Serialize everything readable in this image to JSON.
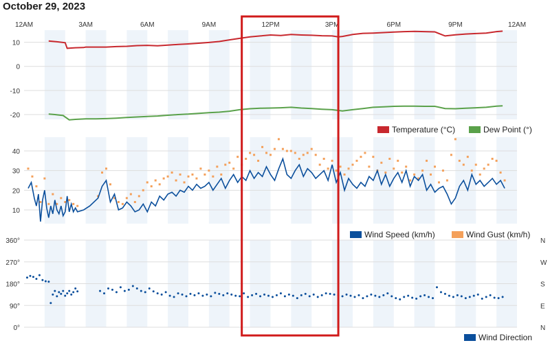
{
  "page": {
    "title": "October 29, 2023"
  },
  "x_axis": {
    "tick_labels": [
      "12AM",
      "3AM",
      "6AM",
      "9AM",
      "12PM",
      "3PM",
      "6PM",
      "9PM",
      "12AM"
    ],
    "tick_hours": [
      0,
      3,
      6,
      9,
      12,
      15,
      18,
      21,
      24
    ],
    "range_hours": [
      0,
      24
    ]
  },
  "colors": {
    "temperature": "#c8282e",
    "dew_point": "#5aa14a",
    "wind_speed": "#0b4f9c",
    "wind_gust": "#f4a05a",
    "wind_direction": "#0b4f9c",
    "highlight": "#d01a1a",
    "band": "#eef4fa",
    "grid": "#dddddd"
  },
  "highlight": {
    "start_hour": 10.6,
    "end_hour": 15.3
  },
  "chart_data": [
    {
      "type": "line",
      "name": "temperature-dewpoint",
      "ylim": [
        -22,
        15
      ],
      "y_ticks": [
        10,
        0,
        -10,
        -20
      ],
      "y_tick_labels": [
        "10",
        "0",
        "-10",
        "-20"
      ],
      "legend": [
        "Temperature (°C)",
        "Dew Point (°)"
      ],
      "series": [
        {
          "name": "Temperature (°C)",
          "x": [
            1.2,
            1.6,
            2.0,
            2.1,
            2.5,
            2.9,
            3.0,
            3.5,
            4.0,
            4.5,
            5.0,
            5.5,
            6.0,
            6.5,
            7.0,
            7.5,
            8.0,
            8.5,
            9.0,
            9.5,
            10.0,
            10.5,
            11.0,
            11.5,
            12.0,
            12.5,
            13.0,
            13.5,
            14.0,
            14.5,
            15.0,
            15.3,
            15.5,
            16.0,
            16.5,
            17.0,
            17.5,
            18.0,
            18.5,
            19.0,
            19.5,
            20.0,
            20.5,
            21.0,
            21.5,
            22.0,
            22.5,
            23.0,
            23.3
          ],
          "y": [
            10.5,
            10.2,
            9.8,
            7.5,
            7.7,
            7.8,
            8.0,
            8.0,
            8.0,
            8.2,
            8.3,
            8.6,
            8.7,
            8.5,
            8.8,
            9.1,
            9.3,
            9.6,
            9.9,
            10.3,
            11.0,
            11.6,
            12.2,
            12.6,
            13.0,
            12.8,
            13.2,
            13.0,
            12.9,
            12.7,
            12.6,
            12.2,
            12.4,
            13.2,
            13.7,
            13.8,
            14.0,
            14.2,
            14.4,
            14.5,
            14.4,
            14.3,
            12.6,
            13.1,
            13.4,
            13.6,
            13.8,
            14.4,
            14.6
          ]
        },
        {
          "name": "Dew Point (°)",
          "x": [
            1.2,
            1.5,
            1.9,
            2.2,
            2.5,
            3.0,
            3.5,
            4.0,
            4.5,
            5.0,
            5.5,
            6.0,
            6.5,
            7.0,
            7.5,
            8.0,
            8.5,
            9.0,
            9.5,
            10.0,
            10.5,
            11.0,
            11.5,
            12.0,
            12.5,
            13.0,
            13.5,
            14.0,
            14.5,
            15.0,
            15.5,
            16.0,
            16.5,
            17.0,
            17.5,
            18.0,
            18.5,
            19.0,
            19.5,
            20.0,
            20.5,
            21.0,
            21.5,
            22.0,
            22.5,
            23.0,
            23.3
          ],
          "y": [
            -19.8,
            -20.0,
            -20.4,
            -22.2,
            -22.0,
            -21.8,
            -21.8,
            -21.7,
            -21.5,
            -21.2,
            -21.0,
            -20.8,
            -20.6,
            -20.3,
            -20.0,
            -19.8,
            -19.5,
            -19.2,
            -19.0,
            -18.6,
            -18.0,
            -17.6,
            -17.4,
            -17.3,
            -17.2,
            -17.0,
            -17.3,
            -17.5,
            -17.8,
            -18.0,
            -18.5,
            -18.0,
            -17.5,
            -17.0,
            -16.8,
            -16.6,
            -16.5,
            -16.5,
            -16.6,
            -16.6,
            -17.5,
            -17.6,
            -17.4,
            -17.2,
            -17.0,
            -16.5,
            -16.4
          ]
        }
      ]
    },
    {
      "type": "line",
      "name": "wind",
      "ylim": [
        3,
        47
      ],
      "y_ticks": [
        40,
        30,
        20,
        10
      ],
      "y_tick_labels": [
        "40",
        "30",
        "20",
        "10"
      ],
      "legend": [
        "Wind Speed (km/h)",
        "Wind Gust (km/h)"
      ],
      "series": [
        {
          "name": "Wind Speed (km/h)",
          "x": [
            0.2,
            0.35,
            0.5,
            0.6,
            0.7,
            0.8,
            0.9,
            1.0,
            1.1,
            1.2,
            1.3,
            1.4,
            1.5,
            1.6,
            1.7,
            1.8,
            1.9,
            2.0,
            2.1,
            2.2,
            2.3,
            2.4,
            2.5,
            2.6,
            2.9,
            3.2,
            3.6,
            3.8,
            4.0,
            4.2,
            4.4,
            4.6,
            4.8,
            5.0,
            5.2,
            5.4,
            5.6,
            5.8,
            6.0,
            6.2,
            6.4,
            6.6,
            6.8,
            7.0,
            7.2,
            7.4,
            7.6,
            7.8,
            8.0,
            8.2,
            8.4,
            8.6,
            8.8,
            9.0,
            9.2,
            9.4,
            9.6,
            9.8,
            10.0,
            10.2,
            10.4,
            10.6,
            10.8,
            11.0,
            11.2,
            11.4,
            11.6,
            11.8,
            12.0,
            12.2,
            12.4,
            12.6,
            12.8,
            13.0,
            13.2,
            13.4,
            13.6,
            13.8,
            14.0,
            14.2,
            14.4,
            14.6,
            14.8,
            15.0,
            15.2,
            15.4,
            15.6,
            15.8,
            16.0,
            16.2,
            16.4,
            16.6,
            16.8,
            17.0,
            17.2,
            17.4,
            17.6,
            17.8,
            18.0,
            18.2,
            18.4,
            18.6,
            18.8,
            19.0,
            19.2,
            19.4,
            19.6,
            19.8,
            20.0,
            20.2,
            20.4,
            20.6,
            20.8,
            21.0,
            21.2,
            21.4,
            21.6,
            21.8,
            22.0,
            22.2,
            22.4,
            22.6,
            22.8,
            23.0,
            23.2,
            23.4
          ],
          "y": [
            21,
            24,
            16,
            12,
            18,
            4,
            15,
            20,
            11,
            6,
            12,
            8,
            15,
            10,
            8,
            12,
            7,
            9,
            17,
            9,
            13,
            9,
            11,
            9,
            10,
            12,
            16,
            22,
            25,
            14,
            18,
            10,
            11,
            14,
            12,
            9,
            10,
            13,
            9,
            14,
            12,
            17,
            15,
            18,
            19,
            17,
            20,
            19,
            22,
            20,
            23,
            21,
            22,
            24,
            20,
            23,
            26,
            21,
            25,
            28,
            24,
            27,
            25,
            30,
            26,
            29,
            27,
            32,
            28,
            25,
            31,
            36,
            28,
            26,
            30,
            33,
            27,
            31,
            29,
            26,
            28,
            30,
            25,
            33,
            24,
            29,
            20,
            26,
            23,
            21,
            24,
            22,
            27,
            25,
            30,
            23,
            28,
            22,
            26,
            29,
            24,
            30,
            22,
            27,
            25,
            28,
            20,
            23,
            19,
            21,
            22,
            18,
            13,
            16,
            22,
            25,
            20,
            28,
            23,
            25,
            22,
            24,
            26,
            23,
            25,
            21
          ]
        },
        {
          "name": "Wind Gust (km/h)",
          "x": [
            0.2,
            0.4,
            0.6,
            0.8,
            1.0,
            1.2,
            1.4,
            1.6,
            1.8,
            2.0,
            2.2,
            2.4,
            2.6,
            3.6,
            3.8,
            4.0,
            4.2,
            4.4,
            4.6,
            4.8,
            5.0,
            5.2,
            5.4,
            5.6,
            5.8,
            6.0,
            6.2,
            6.4,
            6.6,
            6.8,
            7.0,
            7.2,
            7.4,
            7.6,
            7.8,
            8.0,
            8.2,
            8.4,
            8.6,
            8.8,
            9.0,
            9.2,
            9.4,
            9.6,
            9.8,
            10.0,
            10.2,
            10.4,
            10.6,
            10.8,
            11.0,
            11.2,
            11.4,
            11.6,
            11.8,
            12.0,
            12.2,
            12.4,
            12.6,
            12.8,
            13.0,
            13.2,
            13.4,
            13.6,
            13.8,
            14.0,
            14.2,
            14.4,
            14.6,
            14.8,
            15.0,
            15.2,
            15.4,
            15.6,
            15.8,
            16.0,
            16.2,
            16.4,
            16.6,
            16.8,
            17.0,
            17.2,
            17.4,
            17.6,
            17.8,
            18.0,
            18.2,
            18.4,
            18.6,
            18.8,
            19.0,
            19.2,
            19.4,
            19.6,
            19.8,
            20.0,
            20.2,
            20.4,
            20.6,
            20.8,
            21.0,
            21.2,
            21.4,
            21.6,
            21.8,
            22.0,
            22.2,
            22.4,
            22.6,
            22.8,
            23.0,
            23.2,
            23.4
          ],
          "y": [
            31,
            27,
            22,
            14,
            26,
            13,
            18,
            13,
            16,
            14,
            15,
            13,
            12,
            17,
            29,
            31,
            23,
            16,
            14,
            13,
            16,
            18,
            14,
            17,
            20,
            24,
            22,
            25,
            23,
            26,
            27,
            29,
            25,
            28,
            24,
            27,
            28,
            26,
            31,
            28,
            30,
            27,
            32,
            28,
            33,
            34,
            31,
            37,
            33,
            36,
            39,
            38,
            35,
            42,
            39,
            38,
            41,
            46,
            41,
            40,
            40,
            39,
            36,
            38,
            39,
            41,
            38,
            33,
            36,
            31,
            35,
            30,
            32,
            28,
            31,
            33,
            35,
            37,
            39,
            32,
            37,
            30,
            34,
            29,
            36,
            31,
            35,
            29,
            32,
            25,
            28,
            26,
            30,
            35,
            28,
            32,
            24,
            30,
            25,
            38,
            46,
            35,
            33,
            37,
            30,
            33,
            28,
            31,
            33,
            36,
            35,
            29,
            25
          ]
        }
      ]
    },
    {
      "type": "scatter",
      "name": "wind-direction",
      "ylim": [
        0,
        360
      ],
      "y_ticks": [
        360,
        270,
        180,
        90,
        0
      ],
      "y_tick_labels": [
        "360°",
        "270°",
        "180°",
        "90°",
        "0°"
      ],
      "right_tick_labels": [
        "N",
        "W",
        "S",
        "E",
        "N"
      ],
      "legend": [
        "Wind Direction"
      ],
      "series": [
        {
          "name": "Wind Direction",
          "x": [
            0.15,
            0.3,
            0.45,
            0.6,
            0.75,
            0.9,
            1.05,
            1.2,
            1.3,
            1.4,
            1.5,
            1.6,
            1.7,
            1.8,
            1.9,
            2.0,
            2.1,
            2.2,
            2.3,
            2.4,
            2.5,
            2.6,
            3.7,
            3.9,
            4.1,
            4.3,
            4.5,
            4.7,
            4.9,
            5.1,
            5.3,
            5.5,
            5.7,
            5.9,
            6.1,
            6.3,
            6.5,
            6.7,
            6.9,
            7.1,
            7.3,
            7.5,
            7.7,
            7.9,
            8.1,
            8.3,
            8.5,
            8.7,
            8.9,
            9.1,
            9.3,
            9.5,
            9.7,
            9.9,
            10.1,
            10.3,
            10.5,
            10.7,
            10.9,
            11.1,
            11.3,
            11.5,
            11.7,
            11.9,
            12.1,
            12.3,
            12.5,
            12.7,
            12.9,
            13.1,
            13.3,
            13.5,
            13.7,
            13.9,
            14.1,
            14.3,
            14.5,
            14.7,
            14.9,
            15.1,
            15.3,
            15.5,
            15.7,
            15.9,
            16.1,
            16.3,
            16.5,
            16.7,
            16.9,
            17.1,
            17.3,
            17.5,
            17.7,
            17.9,
            18.1,
            18.3,
            18.5,
            18.7,
            18.9,
            19.1,
            19.3,
            19.5,
            19.7,
            19.9,
            20.1,
            20.3,
            20.5,
            20.7,
            20.9,
            21.1,
            21.3,
            21.5,
            21.7,
            21.9,
            22.1,
            22.3,
            22.5,
            22.7,
            22.9,
            23.1,
            23.3
          ],
          "y": [
            205,
            212,
            208,
            200,
            215,
            195,
            190,
            188,
            100,
            135,
            150,
            128,
            145,
            138,
            150,
            130,
            140,
            150,
            135,
            145,
            160,
            148,
            150,
            140,
            160,
            155,
            145,
            165,
            150,
            155,
            170,
            160,
            150,
            145,
            160,
            148,
            140,
            135,
            145,
            130,
            125,
            140,
            135,
            128,
            138,
            132,
            140,
            130,
            135,
            128,
            142,
            138,
            132,
            140,
            135,
            130,
            128,
            140,
            125,
            132,
            138,
            128,
            135,
            130,
            125,
            132,
            140,
            128,
            135,
            130,
            120,
            132,
            138,
            128,
            135,
            125,
            132,
            140,
            138,
            135,
            132,
            128,
            135,
            130,
            125,
            132,
            120,
            128,
            135,
            130,
            125,
            132,
            140,
            128,
            120,
            115,
            125,
            130,
            122,
            118,
            128,
            132,
            125,
            120,
            165,
            145,
            138,
            130,
            125,
            132,
            128,
            120,
            125,
            130,
            135,
            118,
            125,
            132,
            122,
            120,
            125
          ]
        }
      ]
    }
  ]
}
